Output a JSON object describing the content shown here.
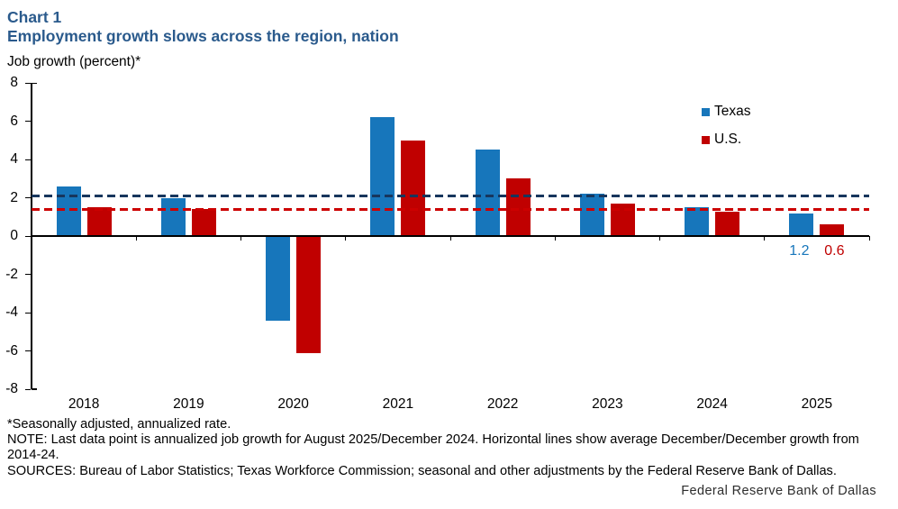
{
  "header": {
    "chart_label": "Chart 1",
    "title": "Employment growth slows across the region, nation"
  },
  "chart_data": {
    "type": "bar",
    "title": "Employment growth slows across the region, nation",
    "ylabel": "Job growth (percent)*",
    "xlabel": "",
    "categories": [
      "2018",
      "2019",
      "2020",
      "2021",
      "2022",
      "2023",
      "2024",
      "2025"
    ],
    "series": [
      {
        "name": "Texas",
        "color": "#1776bb",
        "values": [
          2.6,
          2.0,
          -4.4,
          6.2,
          4.5,
          2.2,
          1.5,
          1.2
        ]
      },
      {
        "name": "U.S.",
        "color": "#c00000",
        "values": [
          1.5,
          1.4,
          -6.1,
          5.0,
          3.0,
          1.7,
          1.25,
          0.6
        ]
      }
    ],
    "reference_lines": [
      {
        "name": "Texas average December/December growth 2014-24",
        "value": 2.1,
        "color": "#17365d",
        "style": "dashed"
      },
      {
        "name": "U.S. average December/December growth 2014-24",
        "value": 1.4,
        "color": "#cc0000",
        "style": "dashed"
      }
    ],
    "end_labels": [
      {
        "series": "Texas",
        "text": "1.2",
        "color": "#1776bb"
      },
      {
        "series": "U.S.",
        "text": "0.6",
        "color": "#c00000"
      }
    ],
    "ylim": [
      -8,
      8
    ],
    "ytick_step": 2,
    "grid": false,
    "legend_position": "top-right"
  },
  "footnotes": [
    "*Seasonally adjusted, annualized rate.",
    "NOTE: Last data point is annualized job growth for August 2025/December 2024. Horizontal lines show average December/December growth from",
    "2014-24.",
    "SOURCES: Bureau of Labor Statistics; Texas Workforce Commission; seasonal and other adjustments by the Federal Reserve Bank of Dallas."
  ],
  "branding": {
    "text": "Federal Reserve Bank of Dallas"
  }
}
